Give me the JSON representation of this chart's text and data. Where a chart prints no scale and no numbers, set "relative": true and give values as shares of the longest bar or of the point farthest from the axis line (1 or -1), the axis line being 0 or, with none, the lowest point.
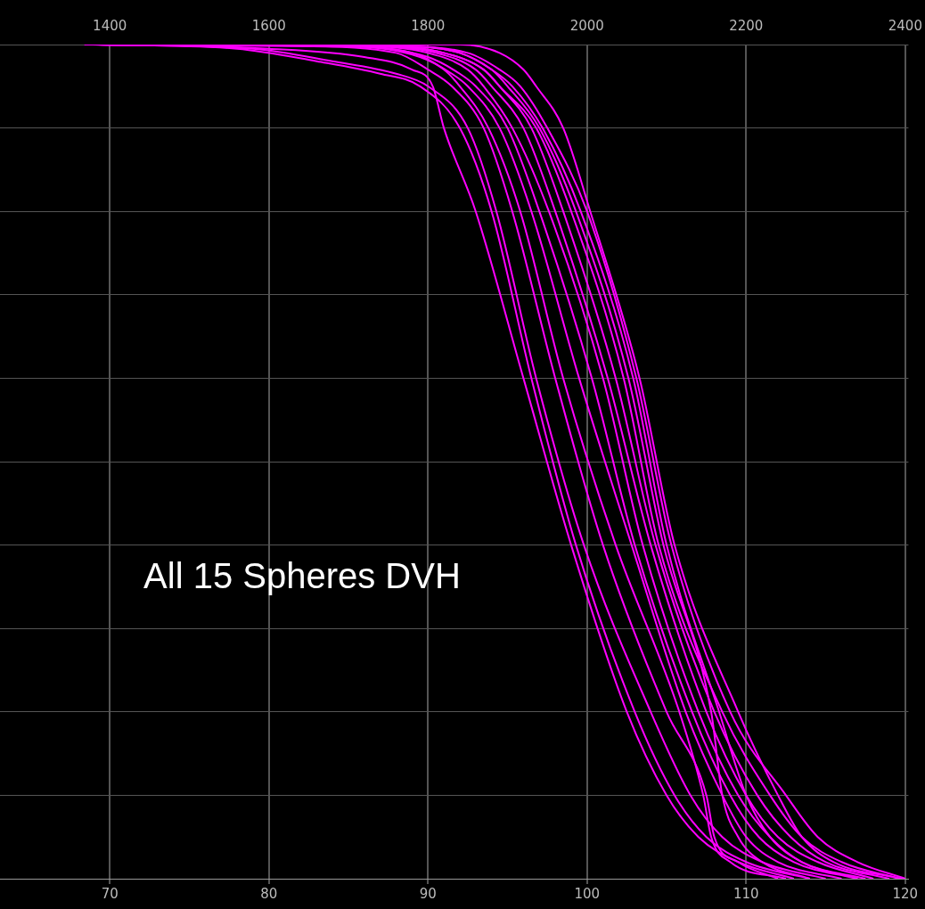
{
  "chart_data": {
    "type": "line",
    "relative": true,
    "annotations": [
      "All 15 Spheres DVH"
    ],
    "xlim": [
      63.1,
      120.2
    ],
    "xticks": [
      70,
      80,
      90,
      100,
      110,
      120
    ],
    "x2lim": [
      1262,
      2404
    ],
    "x2ticks": [
      1400,
      1600,
      1800,
      2000,
      2200,
      2400
    ],
    "grid": true,
    "legend": false,
    "marker": "none",
    "line_style": "solid",
    "series": [
      {
        "color": "#ff00ff",
        "x": [
          68.8,
          92,
          94.5,
          96,
          96.8,
          98.5,
          100.2,
          103.3,
          105.5,
          109.5,
          112,
          113.5,
          115.5,
          119.8
        ],
        "values": [
          1,
          1,
          0.99,
          0.97,
          0.95,
          0.9,
          0.8,
          0.6,
          0.4,
          0.2,
          0.1,
          0.05,
          0.02,
          0
        ]
      },
      {
        "color": "#ff00ff",
        "x": [
          69.3,
          80,
          86,
          89,
          90.3,
          91,
          93,
          96,
          99,
          102.5,
          105,
          107,
          109.5,
          113
        ],
        "values": [
          1,
          0.995,
          0.985,
          0.97,
          0.95,
          0.9,
          0.8,
          0.6,
          0.4,
          0.2,
          0.1,
          0.05,
          0.02,
          0
        ]
      },
      {
        "color": "#ff00ff",
        "x": [
          69.1,
          78,
          83,
          87,
          89.5,
          92,
          94,
          96.5,
          99.3,
          103,
          105.5,
          107.5,
          110,
          114
        ],
        "values": [
          1,
          0.995,
          0.98,
          0.965,
          0.95,
          0.9,
          0.8,
          0.6,
          0.4,
          0.2,
          0.1,
          0.05,
          0.02,
          0
        ]
      },
      {
        "color": "#ff00ff",
        "x": [
          68.9,
          79,
          84,
          88,
          90,
          92.5,
          94.3,
          96.8,
          99.8,
          104,
          106.5,
          108.5,
          111,
          115
        ],
        "values": [
          1,
          0.995,
          0.98,
          0.965,
          0.95,
          0.9,
          0.8,
          0.6,
          0.4,
          0.2,
          0.1,
          0.05,
          0.02,
          0
        ]
      },
      {
        "color": "#ff00ff",
        "x": [
          69.2,
          82,
          88,
          90,
          91.5,
          93.5,
          95.3,
          98,
          101,
          105,
          107.5,
          108,
          109.5,
          112
        ],
        "values": [
          1,
          0.998,
          0.99,
          0.97,
          0.95,
          0.9,
          0.8,
          0.6,
          0.4,
          0.2,
          0.1,
          0.05,
          0.02,
          0
        ]
      },
      {
        "color": "#ff00ff",
        "x": [
          69.4,
          84,
          89,
          91,
          92,
          93.8,
          95.8,
          98.5,
          101.8,
          105.8,
          107.3,
          107.8,
          109,
          112.5
        ],
        "values": [
          1,
          0.998,
          0.99,
          0.97,
          0.95,
          0.9,
          0.8,
          0.6,
          0.4,
          0.2,
          0.1,
          0.05,
          0.02,
          0
        ]
      },
      {
        "color": "#ff00ff",
        "x": [
          69,
          85,
          89.5,
          91.5,
          92.5,
          94.5,
          96.5,
          99.5,
          102.8,
          106.2,
          108.5,
          110,
          112,
          116
        ],
        "values": [
          1,
          0.998,
          0.985,
          0.965,
          0.95,
          0.9,
          0.8,
          0.6,
          0.4,
          0.2,
          0.1,
          0.05,
          0.02,
          0
        ]
      },
      {
        "color": "#ff00ff",
        "x": [
          68.7,
          85,
          90,
          92,
          93,
          95,
          97,
          100.3,
          103,
          106.6,
          109,
          110.8,
          113,
          117
        ],
        "values": [
          1,
          0.998,
          0.985,
          0.965,
          0.95,
          0.9,
          0.8,
          0.6,
          0.4,
          0.2,
          0.1,
          0.05,
          0.02,
          0
        ]
      },
      {
        "color": "#ff00ff",
        "x": [
          69.5,
          86,
          90,
          92.5,
          93.5,
          95.3,
          97.6,
          101,
          103.5,
          107,
          109.5,
          111.5,
          113.5,
          117.5
        ],
        "values": [
          1,
          0.998,
          0.99,
          0.97,
          0.95,
          0.9,
          0.8,
          0.6,
          0.4,
          0.2,
          0.1,
          0.05,
          0.02,
          0
        ]
      },
      {
        "color": "#ff00ff",
        "x": [
          68.6,
          86,
          90.5,
          93,
          94,
          96,
          98,
          101.3,
          104,
          107.5,
          110,
          112,
          114.5,
          118
        ],
        "values": [
          1,
          0.998,
          0.99,
          0.97,
          0.95,
          0.9,
          0.8,
          0.6,
          0.4,
          0.2,
          0.1,
          0.05,
          0.02,
          0
        ]
      },
      {
        "color": "#ff00ff",
        "x": [
          69.6,
          87,
          91,
          93.5,
          94.5,
          96.5,
          98.5,
          101.8,
          104.3,
          108,
          110.7,
          112.8,
          115,
          119
        ],
        "values": [
          1,
          0.998,
          0.99,
          0.97,
          0.95,
          0.9,
          0.8,
          0.6,
          0.4,
          0.2,
          0.1,
          0.05,
          0.02,
          0
        ]
      },
      {
        "color": "#ff00ff",
        "x": [
          68.5,
          87,
          91,
          93.5,
          94.5,
          96.8,
          99,
          102.3,
          104.5,
          108.5,
          111.5,
          113.5,
          116,
          119.6
        ],
        "values": [
          1,
          0.998,
          0.99,
          0.97,
          0.95,
          0.9,
          0.8,
          0.6,
          0.4,
          0.2,
          0.1,
          0.05,
          0.02,
          0
        ]
      },
      {
        "color": "#ff00ff",
        "x": [
          69.7,
          88,
          92,
          94,
          95,
          97,
          99.3,
          102.6,
          104.8,
          107.8,
          108.5,
          109.5,
          111,
          114
        ],
        "values": [
          1,
          0.998,
          0.99,
          0.97,
          0.95,
          0.9,
          0.8,
          0.6,
          0.4,
          0.2,
          0.1,
          0.05,
          0.02,
          0
        ]
      },
      {
        "color": "#ff00ff",
        "x": [
          68.4,
          88,
          92,
          94,
          95.3,
          97.2,
          99.6,
          102.9,
          105,
          108.3,
          110,
          111.5,
          113.5,
          117
        ],
        "values": [
          1,
          0.998,
          0.99,
          0.97,
          0.95,
          0.9,
          0.8,
          0.6,
          0.4,
          0.2,
          0.1,
          0.05,
          0.02,
          0
        ]
      },
      {
        "color": "#ff00ff",
        "x": [
          69.8,
          88,
          92.5,
          94.5,
          95.8,
          97.5,
          100,
          103.1,
          105.3,
          109,
          112.5,
          114.5,
          117,
          120
        ],
        "values": [
          1,
          0.998,
          0.99,
          0.97,
          0.95,
          0.9,
          0.8,
          0.6,
          0.4,
          0.2,
          0.1,
          0.05,
          0.02,
          0
        ]
      }
    ]
  }
}
